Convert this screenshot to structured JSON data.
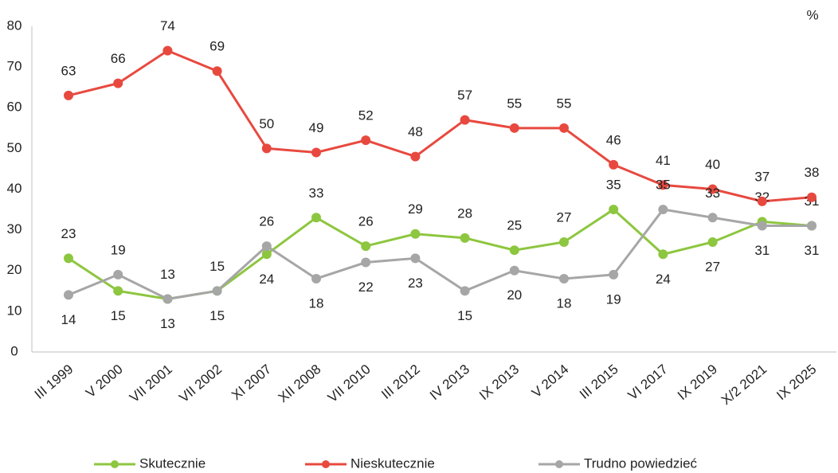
{
  "chart_data": {
    "type": "line",
    "unit": "%",
    "categories": [
      "III 1999",
      "V 2000",
      "VII 2001",
      "VII 2002",
      "XI 2007",
      "XII 2008",
      "VII 2010",
      "III 2012",
      "IV 2013",
      "IX 2013",
      "V 2014",
      "III 2015",
      "VI 2017",
      "IX 2019",
      "X/2 2021",
      "IX 2025"
    ],
    "series": [
      {
        "name": "Skutecznie",
        "color": "#8dc63f",
        "values": [
          23,
          15,
          13,
          15,
          24,
          33,
          26,
          29,
          28,
          25,
          27,
          35,
          24,
          27,
          32,
          31
        ]
      },
      {
        "name": "Nieskutecznie",
        "color": "#e8493f",
        "values": [
          63,
          66,
          74,
          69,
          50,
          49,
          52,
          48,
          57,
          55,
          55,
          46,
          41,
          40,
          37,
          38
        ]
      },
      {
        "name": "Trudno powiedzieć",
        "color": "#a6a6a6",
        "values": [
          14,
          19,
          13,
          15,
          26,
          18,
          22,
          23,
          15,
          20,
          18,
          19,
          35,
          33,
          31,
          31
        ]
      }
    ],
    "ylim": [
      0,
      80
    ],
    "yticks": [
      0,
      10,
      20,
      30,
      40,
      50,
      60,
      70,
      80
    ],
    "grid": false,
    "legend": "bottom"
  }
}
